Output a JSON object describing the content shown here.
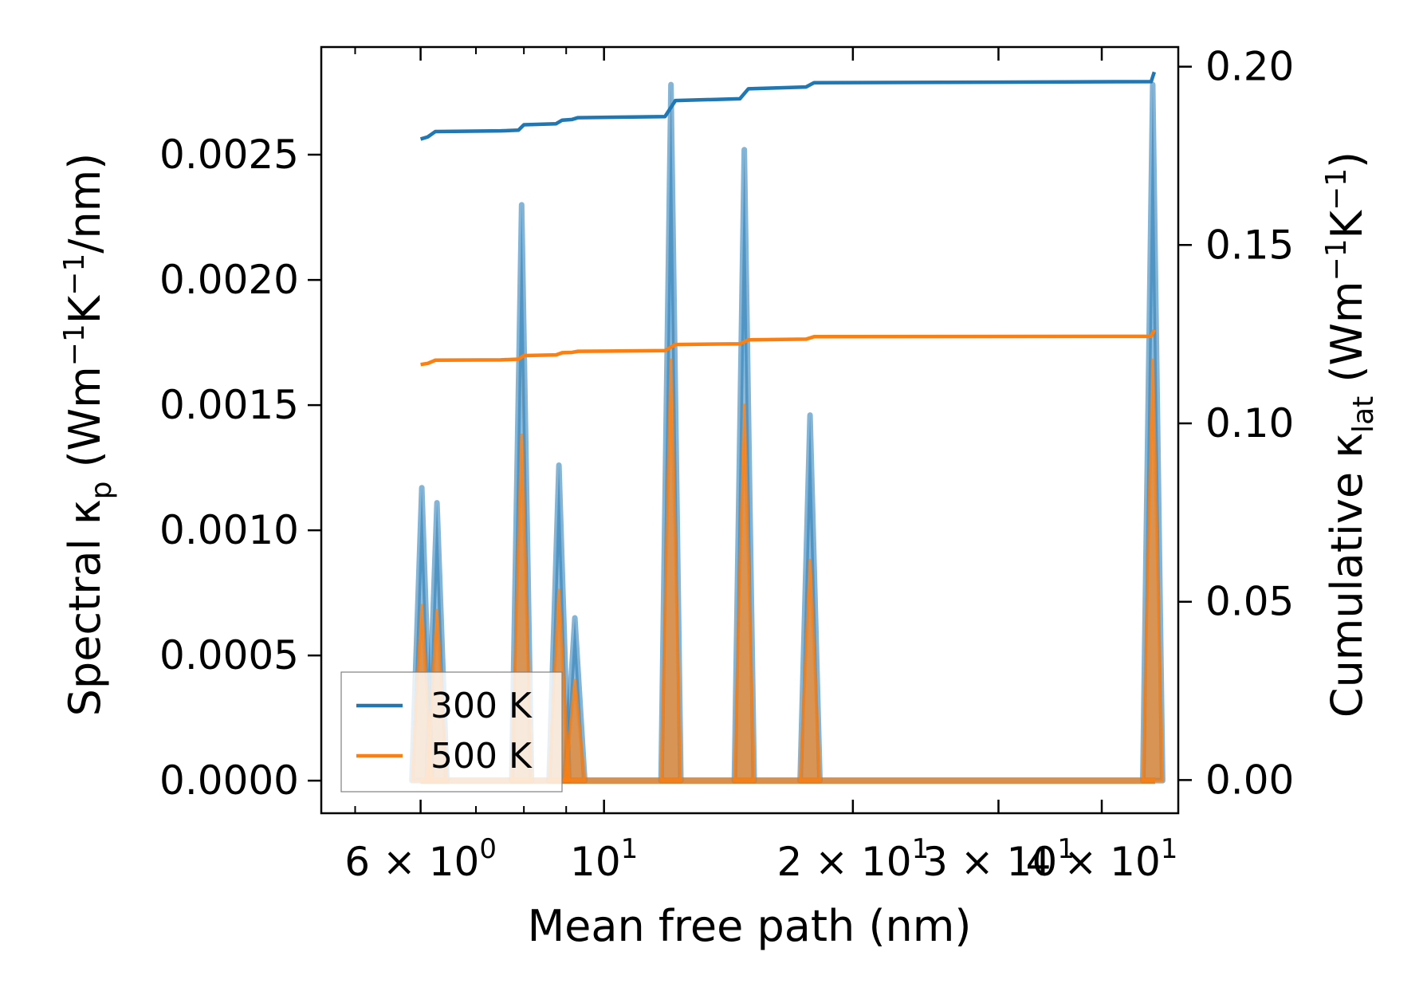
{
  "chart_data": {
    "type": "line",
    "title": "",
    "xlabel": "Mean free path (nm)",
    "ylabel_left": {
      "main": "Spectral κ",
      "sub": "p",
      "units": " (Wm",
      "sup1": "−1",
      "k": "K",
      "sup2": "−1",
      "tail": "/nm)"
    },
    "ylabel_right": {
      "main": "Cumulative κ",
      "sub": "lat",
      "units": " (Wm",
      "sup1": "−1",
      "k": "K",
      "sup2": "−1",
      "tail": ")"
    },
    "xscale": "log",
    "xlim": [
      4.55,
      49.5
    ],
    "ylim_left": [
      -0.00013,
      0.00293
    ],
    "ylim_right": [
      -0.0093,
      0.2055
    ],
    "x_ticks": [
      {
        "value": 6,
        "base": "6 × 10",
        "exp": "0"
      },
      {
        "value": 10,
        "base": "10",
        "exp": "1"
      },
      {
        "value": 20,
        "base": "2 × 10",
        "exp": "1"
      },
      {
        "value": 30,
        "base": "3 × 10",
        "exp": "1"
      },
      {
        "value": 40,
        "base": "4 × 10",
        "exp": "1"
      }
    ],
    "y_left_ticks": [
      {
        "value": 0.0,
        "label": "0.0000"
      },
      {
        "value": 0.0005,
        "label": "0.0005"
      },
      {
        "value": 0.001,
        "label": "0.0010"
      },
      {
        "value": 0.0015,
        "label": "0.0015"
      },
      {
        "value": 0.002,
        "label": "0.0020"
      },
      {
        "value": 0.0025,
        "label": "0.0025"
      }
    ],
    "y_right_ticks": [
      {
        "value": 0.0,
        "label": "0.00"
      },
      {
        "value": 0.05,
        "label": "0.05"
      },
      {
        "value": 0.1,
        "label": "0.10"
      },
      {
        "value": 0.15,
        "label": "0.15"
      },
      {
        "value": 0.2,
        "label": "0.20"
      }
    ],
    "peaks": [
      {
        "x": 6.02,
        "k300": 0.00117,
        "k500": 0.0007
      },
      {
        "x": 6.28,
        "k300": 0.00111,
        "k500": 0.00068
      },
      {
        "x": 7.95,
        "k300": 0.0023,
        "k500": 0.00138
      },
      {
        "x": 8.82,
        "k300": 0.00126,
        "k500": 0.00076
      },
      {
        "x": 9.22,
        "k300": 0.00065,
        "k500": 0.0004
      },
      {
        "x": 12.05,
        "k300": 0.00278,
        "k500": 0.00168
      },
      {
        "x": 14.78,
        "k300": 0.00252,
        "k500": 0.0015
      },
      {
        "x": 17.75,
        "k300": 0.00146,
        "k500": 0.00088
      },
      {
        "x": 46.1,
        "k300": 0.00278,
        "k500": 0.00168
      }
    ],
    "series": [
      {
        "name": "300 K",
        "color": "#1f77b4",
        "cumulative": [
          [
            6.0,
            0.1797
          ],
          [
            6.12,
            0.1803
          ],
          [
            6.25,
            0.1818
          ],
          [
            7.5,
            0.182
          ],
          [
            7.88,
            0.1822
          ],
          [
            8.0,
            0.1837
          ],
          [
            8.75,
            0.184
          ],
          [
            8.9,
            0.185
          ],
          [
            9.15,
            0.1852
          ],
          [
            9.3,
            0.1857
          ],
          [
            11.85,
            0.186
          ],
          [
            12.2,
            0.1905
          ],
          [
            14.6,
            0.191
          ],
          [
            14.95,
            0.1938
          ],
          [
            17.55,
            0.1943
          ],
          [
            17.95,
            0.1955
          ],
          [
            45.9,
            0.1958
          ],
          [
            46.3,
            0.1985
          ]
        ]
      },
      {
        "name": "500 K",
        "color": "#ff7f0e",
        "cumulative": [
          [
            6.0,
            0.1165
          ],
          [
            6.12,
            0.1168
          ],
          [
            6.25,
            0.1177
          ],
          [
            7.5,
            0.1178
          ],
          [
            7.88,
            0.118
          ],
          [
            8.0,
            0.119
          ],
          [
            8.75,
            0.1192
          ],
          [
            8.9,
            0.1198
          ],
          [
            9.15,
            0.1199
          ],
          [
            9.3,
            0.1202
          ],
          [
            11.85,
            0.1204
          ],
          [
            12.2,
            0.1221
          ],
          [
            14.6,
            0.1223
          ],
          [
            14.95,
            0.1234
          ],
          [
            17.55,
            0.1236
          ],
          [
            17.95,
            0.1243
          ],
          [
            45.9,
            0.1244
          ],
          [
            46.3,
            0.1262
          ]
        ]
      }
    ],
    "legend": {
      "position": "lower-left",
      "entries": [
        "300 K",
        "500 K"
      ]
    }
  }
}
